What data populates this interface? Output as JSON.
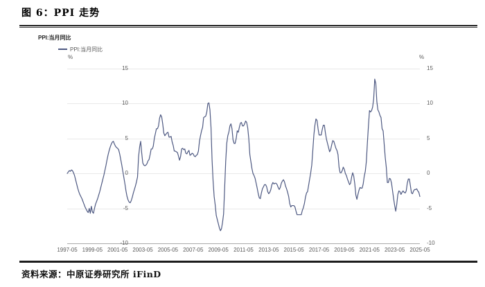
{
  "figure": {
    "title": "图 6：PPI 走势",
    "source": "资料来源：中原证券研究所  iFinD"
  },
  "chart": {
    "panel_label": "PPI:当月同比",
    "legend_label": "PPI:当月同比",
    "unit_left": "%",
    "unit_right": "%",
    "colors": {
      "line": "#4d5881",
      "grid": "#e8e8e8",
      "axis": "#a9a9a9",
      "tick_text": "#595959"
    }
  },
  "chart_data": {
    "type": "line",
    "title": "PPI:当月同比",
    "ylabel": "%",
    "ylim": [
      -10,
      15
    ],
    "y_ticks": [
      15,
      10,
      5,
      0,
      -5,
      -10
    ],
    "grid": "horizontal",
    "legend_position": "top-left",
    "x_start": "1997-05",
    "x_end": "2025-05",
    "x_frequency": "monthly",
    "x_tick_labels": [
      "1997-05",
      "1999-05",
      "2001-05",
      "2003-05",
      "2005-05",
      "2007-05",
      "2009-05",
      "2011-05",
      "2013-05",
      "2015-05",
      "2017-05",
      "2019-05",
      "2021-05",
      "2023-05",
      "2025-05"
    ],
    "series": [
      {
        "name": "PPI:当月同比",
        "color": "#4d5881",
        "values": [
          0.0,
          0.2,
          0.4,
          0.3,
          0.5,
          0.4,
          0.1,
          -0.3,
          -0.9,
          -1.5,
          -2.1,
          -2.6,
          -3.0,
          -3.3,
          -3.6,
          -4.0,
          -4.4,
          -4.8,
          -5.1,
          -5.4,
          -5.6,
          -5.0,
          -5.7,
          -4.7,
          -5.5,
          -5.7,
          -5.0,
          -4.4,
          -4.0,
          -3.6,
          -3.1,
          -2.6,
          -2.0,
          -1.4,
          -0.8,
          -0.2,
          0.5,
          1.2,
          2.0,
          2.7,
          3.3,
          3.8,
          4.2,
          4.5,
          4.6,
          4.2,
          3.9,
          3.7,
          3.6,
          3.4,
          2.8,
          2.0,
          1.2,
          0.3,
          -0.6,
          -1.5,
          -2.5,
          -3.3,
          -3.8,
          -4.1,
          -4.2,
          -3.9,
          -3.4,
          -2.8,
          -2.3,
          -1.8,
          -1.2,
          -0.5,
          2.4,
          3.8,
          4.6,
          2.9,
          1.5,
          1.2,
          1.1,
          1.2,
          1.4,
          1.8,
          2.0,
          2.7,
          3.5,
          3.5,
          3.9,
          5.0,
          5.7,
          6.4,
          6.4,
          6.8,
          7.9,
          8.4,
          8.1,
          7.1,
          5.8,
          5.4,
          5.6,
          5.8,
          5.9,
          5.2,
          5.2,
          5.3,
          4.5,
          4.0,
          3.2,
          3.2,
          3.1,
          3.0,
          2.5,
          1.9,
          2.4,
          3.5,
          3.6,
          3.4,
          3.5,
          2.9,
          2.8,
          3.1,
          3.3,
          2.6,
          2.7,
          2.9,
          2.8,
          2.5,
          2.4,
          2.6,
          2.7,
          3.2,
          4.6,
          5.4,
          6.1,
          6.6,
          8.0,
          8.1,
          8.2,
          8.8,
          10.0,
          10.1,
          9.1,
          6.6,
          2.0,
          -1.1,
          -3.3,
          -4.5,
          -6.0,
          -6.6,
          -7.2,
          -7.8,
          -8.2,
          -7.9,
          -7.0,
          -5.8,
          -2.1,
          1.7,
          4.3,
          5.4,
          5.9,
          6.8,
          7.1,
          6.4,
          4.8,
          4.3,
          4.3,
          5.0,
          6.1,
          5.9,
          6.6,
          7.2,
          7.3,
          6.8,
          6.8,
          7.1,
          7.5,
          7.3,
          6.5,
          5.0,
          2.7,
          1.7,
          0.7,
          0.0,
          -0.3,
          -0.7,
          -1.4,
          -2.1,
          -2.9,
          -3.5,
          -3.6,
          -2.8,
          -2.2,
          -1.9,
          -1.6,
          -1.6,
          -1.9,
          -2.6,
          -2.9,
          -2.7,
          -2.3,
          -1.6,
          -1.3,
          -1.5,
          -1.4,
          -1.4,
          -1.6,
          -2.0,
          -2.3,
          -2.0,
          -1.4,
          -1.1,
          -0.9,
          -1.2,
          -1.8,
          -2.2,
          -2.7,
          -3.3,
          -4.3,
          -4.8,
          -4.6,
          -4.6,
          -4.6,
          -4.8,
          -5.4,
          -5.9,
          -5.9,
          -5.9,
          -5.9,
          -5.9,
          -5.3,
          -4.9,
          -4.3,
          -3.4,
          -2.8,
          -2.6,
          -1.7,
          -0.8,
          0.1,
          1.2,
          3.3,
          5.5,
          6.9,
          7.8,
          7.6,
          6.4,
          5.5,
          5.5,
          5.5,
          6.3,
          6.9,
          6.9,
          5.8,
          4.9,
          4.3,
          3.7,
          3.1,
          3.4,
          4.1,
          4.7,
          4.6,
          4.1,
          3.6,
          3.3,
          2.7,
          0.9,
          0.1,
          0.1,
          0.4,
          0.9,
          0.6,
          0.0,
          -0.3,
          -0.8,
          -1.2,
          -1.6,
          -1.4,
          -0.5,
          0.1,
          -0.4,
          -1.5,
          -3.1,
          -3.7,
          -3.0,
          -2.4,
          -2.0,
          -2.1,
          -2.1,
          -1.5,
          -0.4,
          0.3,
          1.7,
          4.4,
          6.8,
          9.0,
          8.8,
          9.0,
          9.5,
          10.7,
          13.5,
          12.9,
          10.3,
          9.1,
          8.8,
          8.3,
          8.0,
          6.4,
          6.1,
          4.2,
          2.3,
          0.9,
          -1.3,
          -1.3,
          -0.7,
          -0.8,
          -1.4,
          -2.5,
          -3.6,
          -4.6,
          -5.4,
          -4.4,
          -3.0,
          -2.5,
          -2.6,
          -3.0,
          -2.7,
          -2.5,
          -2.7,
          -2.8,
          -2.5,
          -1.4,
          -0.8,
          -0.8,
          -1.8,
          -2.8,
          -2.9,
          -2.5,
          -2.3,
          -2.3,
          -2.2,
          -2.5,
          -2.7,
          -3.3
        ]
      }
    ]
  }
}
